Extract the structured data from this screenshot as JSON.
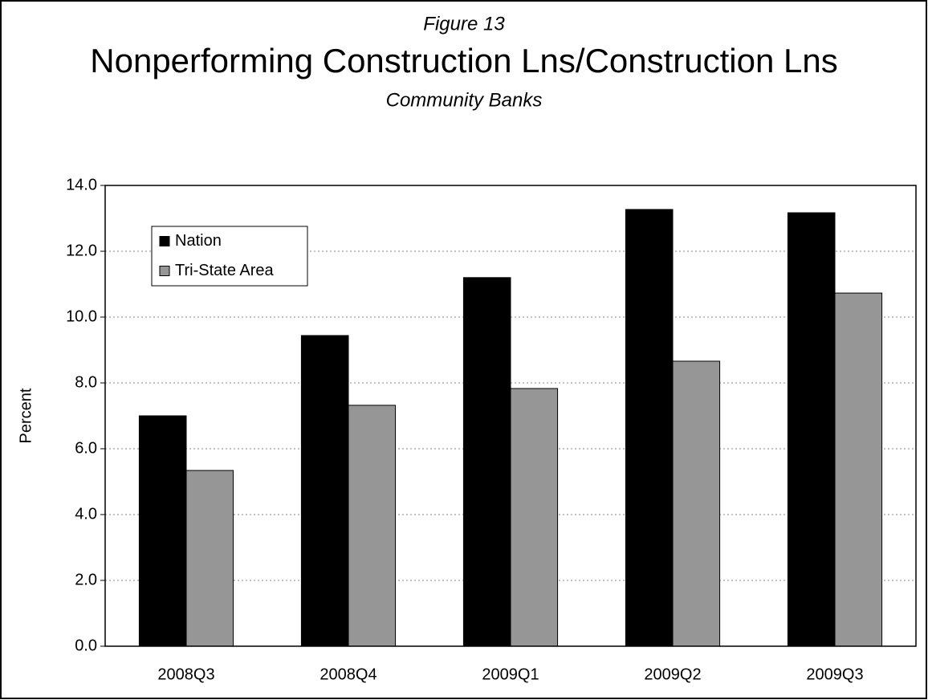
{
  "chart_data": {
    "type": "bar",
    "figure_label": "Figure 13",
    "title": "Nonperforming Construction Lns/Construction Lns",
    "subtitle": "Community Banks",
    "y_label": "Percent",
    "categories": [
      "2008Q3",
      "2008Q4",
      "2009Q1",
      "2009Q2",
      "2009Q3"
    ],
    "series": [
      {
        "name": "Nation",
        "color": "#000000",
        "values": [
          7.0,
          9.44,
          11.2,
          13.27,
          13.17
        ]
      },
      {
        "name": "Tri-State Area",
        "color": "#969696",
        "values": [
          5.34,
          7.32,
          7.83,
          8.66,
          10.73
        ]
      }
    ],
    "ylim": [
      0,
      14
    ],
    "yticks": [
      {
        "value": 0,
        "label": "0.0"
      },
      {
        "value": 2,
        "label": "2.0"
      },
      {
        "value": 4,
        "label": "4.0"
      },
      {
        "value": 6,
        "label": "6.0"
      },
      {
        "value": 8,
        "label": "8.0"
      },
      {
        "value": 10,
        "label": "10.0"
      },
      {
        "value": 12,
        "label": "12.0"
      },
      {
        "value": 14,
        "label": "14.0"
      }
    ],
    "grid": true,
    "legend": "upper-left"
  }
}
